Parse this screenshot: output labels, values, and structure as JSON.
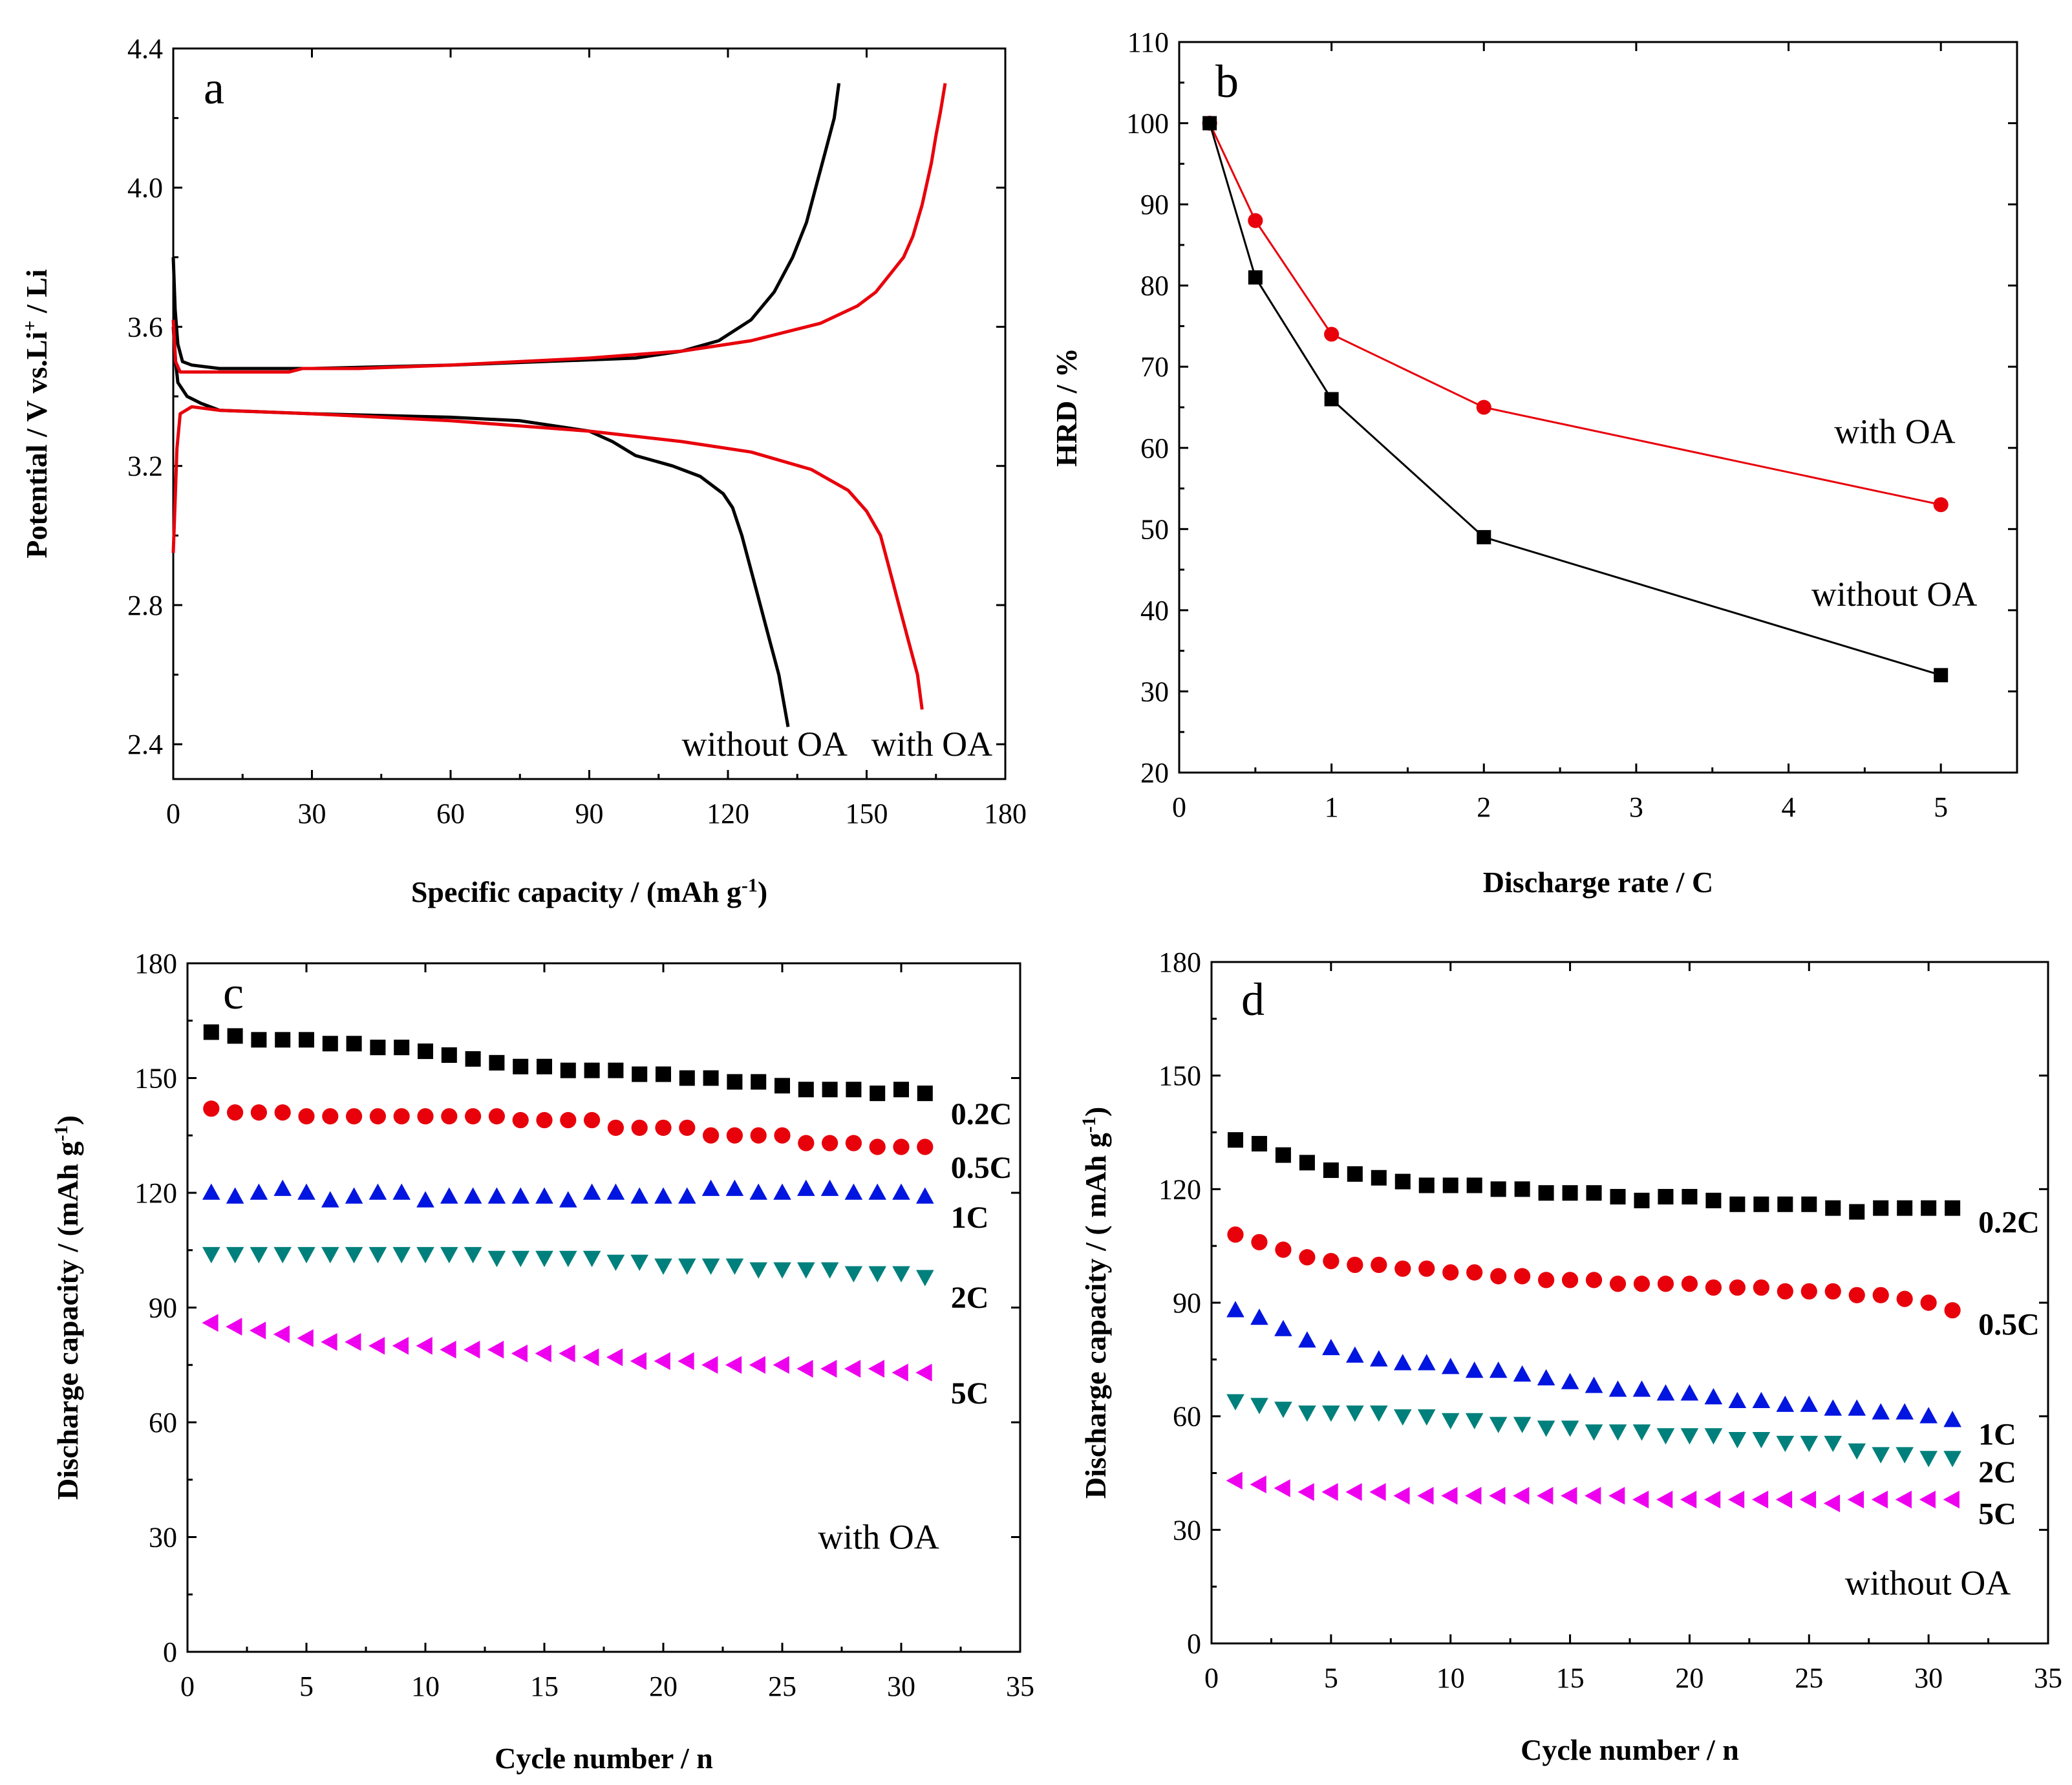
{
  "chart_data": [
    {
      "id": "a",
      "type": "line",
      "panel_label": "a",
      "xlabel": "Specific capacity / (mAh g",
      "xlabel_sup": "-1",
      "xlabel_end": ")",
      "ylabel": "Potential / V vs.Li",
      "ylabel_sup": "+",
      "ylabel_end": " / Li",
      "xlim": [
        0,
        180
      ],
      "ylim": [
        2.3,
        4.4
      ],
      "xticks": [
        0,
        30,
        60,
        90,
        120,
        150,
        180
      ],
      "xtick_labels": [
        "0",
        "30",
        "60",
        "90",
        "120",
        "150",
        "180"
      ],
      "yticks": [
        2.4,
        2.8,
        3.2,
        3.6,
        4.0,
        4.4
      ],
      "ytick_labels": [
        "2.4",
        "2.8",
        "3.2",
        "3.6",
        "4.0",
        "4.4"
      ],
      "series": [
        {
          "name": "without OA (charge)",
          "color": "#000000",
          "points": [
            [
              0,
              3.8
            ],
            [
              0.4,
              3.65
            ],
            [
              1,
              3.55
            ],
            [
              2,
              3.5
            ],
            [
              4,
              3.49
            ],
            [
              10,
              3.48
            ],
            [
              30,
              3.48
            ],
            [
              60,
              3.49
            ],
            [
              80,
              3.5
            ],
            [
              100,
              3.51
            ],
            [
              110,
              3.53
            ],
            [
              118,
              3.56
            ],
            [
              125,
              3.62
            ],
            [
              130,
              3.7
            ],
            [
              134,
              3.8
            ],
            [
              137,
              3.9
            ],
            [
              139,
              4.0
            ],
            [
              141,
              4.1
            ],
            [
              143,
              4.2
            ],
            [
              144,
              4.3
            ]
          ]
        },
        {
          "name": "without OA (discharge)",
          "color": "#000000",
          "points": [
            [
              0,
              3.6
            ],
            [
              0.5,
              3.5
            ],
            [
              1,
              3.44
            ],
            [
              3,
              3.4
            ],
            [
              6,
              3.38
            ],
            [
              10,
              3.36
            ],
            [
              30,
              3.35
            ],
            [
              60,
              3.34
            ],
            [
              75,
              3.33
            ],
            [
              85,
              3.31
            ],
            [
              90,
              3.3
            ],
            [
              95,
              3.27
            ],
            [
              100,
              3.23
            ],
            [
              108,
              3.2
            ],
            [
              114,
              3.17
            ],
            [
              119,
              3.12
            ],
            [
              121,
              3.08
            ],
            [
              123,
              3.0
            ],
            [
              125,
              2.9
            ],
            [
              127,
              2.8
            ],
            [
              129,
              2.7
            ],
            [
              131,
              2.6
            ],
            [
              133,
              2.45
            ]
          ]
        },
        {
          "name": "with OA (charge)",
          "color": "#e8000b",
          "points": [
            [
              0,
              3.62
            ],
            [
              0.5,
              3.5
            ],
            [
              1.5,
              3.47
            ],
            [
              5,
              3.47
            ],
            [
              10,
              3.47
            ],
            [
              25,
              3.47
            ],
            [
              28,
              3.48
            ],
            [
              40,
              3.48
            ],
            [
              60,
              3.49
            ],
            [
              90,
              3.51
            ],
            [
              110,
              3.53
            ],
            [
              125,
              3.56
            ],
            [
              140,
              3.61
            ],
            [
              148,
              3.66
            ],
            [
              152,
              3.7
            ],
            [
              155,
              3.75
            ],
            [
              158,
              3.8
            ],
            [
              160,
              3.86
            ],
            [
              162,
              3.95
            ],
            [
              164,
              4.07
            ],
            [
              165,
              4.15
            ],
            [
              166,
              4.22
            ],
            [
              167,
              4.3
            ]
          ]
        },
        {
          "name": "with OA (discharge)",
          "color": "#e8000b",
          "points": [
            [
              0,
              2.95
            ],
            [
              0.4,
              3.1
            ],
            [
              0.8,
              3.25
            ],
            [
              1.5,
              3.35
            ],
            [
              4,
              3.37
            ],
            [
              10,
              3.36
            ],
            [
              30,
              3.35
            ],
            [
              60,
              3.33
            ],
            [
              90,
              3.3
            ],
            [
              110,
              3.27
            ],
            [
              125,
              3.24
            ],
            [
              138,
              3.19
            ],
            [
              146,
              3.13
            ],
            [
              150,
              3.07
            ],
            [
              153,
              3.0
            ],
            [
              155,
              2.9
            ],
            [
              157,
              2.8
            ],
            [
              159,
              2.7
            ],
            [
              161,
              2.6
            ],
            [
              162,
              2.5
            ]
          ]
        }
      ],
      "annotations": [
        {
          "text": "without OA",
          "x": 110,
          "y": 2.4
        },
        {
          "text": "with OA",
          "x": 151,
          "y": 2.4
        }
      ]
    },
    {
      "id": "b",
      "type": "line",
      "panel_label": "b",
      "xlabel": "Discharge rate / C",
      "ylabel": "HRD / %",
      "xlim": [
        0,
        5.5
      ],
      "ylim": [
        20,
        110
      ],
      "xticks": [
        0,
        1,
        2,
        3,
        4,
        5
      ],
      "xtick_labels": [
        "0",
        "1",
        "2",
        "3",
        "4",
        "5"
      ],
      "yticks": [
        20,
        30,
        40,
        50,
        60,
        70,
        80,
        90,
        100,
        110
      ],
      "ytick_labels": [
        "20",
        "30",
        "40",
        "50",
        "60",
        "70",
        "80",
        "90",
        "100",
        "110"
      ],
      "series": [
        {
          "name": "with OA",
          "color": "#e8000b",
          "marker": "circle",
          "x": [
            0.2,
            0.5,
            1,
            2,
            5
          ],
          "values": [
            100,
            88,
            74,
            65,
            53
          ]
        },
        {
          "name": "without OA",
          "color": "#000000",
          "marker": "square",
          "x": [
            0.2,
            0.5,
            1,
            2,
            5
          ],
          "values": [
            100,
            81,
            66,
            49,
            32
          ]
        }
      ],
      "annotations": [
        {
          "text": "with OA",
          "x": 4.3,
          "y": 62
        },
        {
          "text": "without OA",
          "x": 4.15,
          "y": 42
        }
      ]
    },
    {
      "id": "c",
      "type": "scatter",
      "panel_label": "c",
      "xlabel": "Cycle number / n",
      "ylabel": "Discharge capacity / (mAh g",
      "ylabel_sup": "-1",
      "ylabel_end": ")",
      "xlim": [
        0,
        35
      ],
      "ylim": [
        0,
        180
      ],
      "xticks": [
        0,
        5,
        10,
        15,
        20,
        25,
        30,
        35
      ],
      "xtick_labels": [
        "0",
        "5",
        "10",
        "15",
        "20",
        "25",
        "30",
        "35"
      ],
      "yticks": [
        0,
        30,
        60,
        90,
        120,
        150,
        180
      ],
      "ytick_labels": [
        "0",
        "30",
        "60",
        "90",
        "120",
        "150",
        "180"
      ],
      "x": [
        1,
        2,
        3,
        4,
        5,
        6,
        7,
        8,
        9,
        10,
        11,
        12,
        13,
        14,
        15,
        16,
        17,
        18,
        19,
        20,
        21,
        22,
        23,
        24,
        25,
        26,
        27,
        28,
        29,
        30,
        31
      ],
      "series": [
        {
          "name": "0.2C",
          "color": "#000000",
          "marker": "square",
          "values": [
            162,
            161,
            160,
            160,
            160,
            159,
            159,
            158,
            158,
            157,
            156,
            155,
            154,
            153,
            153,
            152,
            152,
            152,
            151,
            151,
            150,
            150,
            149,
            149,
            148,
            147,
            147,
            147,
            146,
            147,
            146
          ]
        },
        {
          "name": "0.5C",
          "color": "#e8000b",
          "marker": "circle",
          "values": [
            142,
            141,
            141,
            141,
            140,
            140,
            140,
            140,
            140,
            140,
            140,
            140,
            140,
            139,
            139,
            139,
            139,
            137,
            137,
            137,
            137,
            135,
            135,
            135,
            135,
            133,
            133,
            133,
            132,
            132,
            132
          ]
        },
        {
          "name": "1C",
          "color": "#0015e0",
          "marker": "triangle-up",
          "values": [
            120,
            119,
            120,
            121,
            120,
            118,
            119,
            120,
            120,
            118,
            119,
            119,
            119,
            119,
            119,
            118,
            120,
            120,
            119,
            119,
            119,
            121,
            121,
            120,
            120,
            121,
            121,
            120,
            120,
            120,
            119
          ]
        },
        {
          "name": "2C",
          "color": "#00807c",
          "marker": "triangle-down",
          "values": [
            104,
            104,
            104,
            104,
            104,
            104,
            104,
            104,
            104,
            104,
            104,
            104,
            103,
            103,
            103,
            103,
            103,
            102,
            102,
            101,
            101,
            101,
            101,
            100,
            100,
            100,
            100,
            99,
            99,
            99,
            98
          ]
        },
        {
          "name": "5C",
          "color": "#ee00ee",
          "marker": "triangle-left",
          "values": [
            86,
            85,
            84,
            83,
            82,
            81,
            81,
            80,
            80,
            80,
            79,
            79,
            79,
            78,
            78,
            78,
            77,
            77,
            76,
            76,
            76,
            75,
            75,
            75,
            75,
            74,
            74,
            74,
            74,
            73,
            73
          ]
        }
      ],
      "annotations": [
        {
          "text": "with OA",
          "x": 26.5,
          "y": 30
        }
      ]
    },
    {
      "id": "d",
      "type": "scatter",
      "panel_label": "d",
      "xlabel": "Cycle number / n",
      "ylabel": "Discharge capacity / ( mAh g",
      "ylabel_sup": "-1",
      "ylabel_end": ")",
      "xlim": [
        0,
        35
      ],
      "ylim": [
        0,
        180
      ],
      "xticks": [
        0,
        5,
        10,
        15,
        20,
        25,
        30,
        35
      ],
      "xtick_labels": [
        "0",
        "5",
        "10",
        "15",
        "20",
        "25",
        "30",
        "35"
      ],
      "yticks": [
        0,
        30,
        60,
        90,
        120,
        150,
        180
      ],
      "ytick_labels": [
        "0",
        "30",
        "60",
        "90",
        "120",
        "150",
        "180"
      ],
      "x": [
        1,
        2,
        3,
        4,
        5,
        6,
        7,
        8,
        9,
        10,
        11,
        12,
        13,
        14,
        15,
        16,
        17,
        18,
        19,
        20,
        21,
        22,
        23,
        24,
        25,
        26,
        27,
        28,
        29,
        30,
        31
      ],
      "series": [
        {
          "name": "0.2C",
          "color": "#000000",
          "marker": "square",
          "values": [
            133,
            132,
            129,
            127,
            125,
            124,
            123,
            122,
            121,
            121,
            121,
            120,
            120,
            119,
            119,
            119,
            118,
            117,
            118,
            118,
            117,
            116,
            116,
            116,
            116,
            115,
            114,
            115,
            115,
            115,
            115
          ]
        },
        {
          "name": "0.5C",
          "color": "#e8000b",
          "marker": "circle",
          "values": [
            108,
            106,
            104,
            102,
            101,
            100,
            100,
            99,
            99,
            98,
            98,
            97,
            97,
            96,
            96,
            96,
            95,
            95,
            95,
            95,
            94,
            94,
            94,
            93,
            93,
            93,
            92,
            92,
            91,
            90,
            88
          ]
        },
        {
          "name": "1C",
          "color": "#0015e0",
          "marker": "triangle-up",
          "values": [
            88,
            86,
            83,
            80,
            78,
            76,
            75,
            74,
            74,
            73,
            72,
            72,
            71,
            70,
            69,
            68,
            67,
            67,
            66,
            66,
            65,
            64,
            64,
            63,
            63,
            62,
            62,
            61,
            61,
            60,
            59
          ]
        },
        {
          "name": "2C",
          "color": "#00807c",
          "marker": "triangle-down",
          "values": [
            64,
            63,
            62,
            61,
            61,
            61,
            61,
            60,
            60,
            59,
            59,
            58,
            58,
            57,
            57,
            56,
            56,
            56,
            55,
            55,
            55,
            54,
            54,
            53,
            53,
            53,
            51,
            50,
            50,
            49,
            49
          ]
        },
        {
          "name": "5C",
          "color": "#ee00ee",
          "marker": "triangle-left",
          "values": [
            43,
            42,
            41,
            40,
            40,
            40,
            40,
            39,
            39,
            39,
            39,
            39,
            39,
            39,
            39,
            39,
            39,
            38,
            38,
            38,
            38,
            38,
            38,
            38,
            38,
            37,
            38,
            38,
            38,
            38,
            38
          ]
        }
      ],
      "annotations": [
        {
          "text": "without OA",
          "x": 26.5,
          "y": 16
        }
      ]
    }
  ]
}
